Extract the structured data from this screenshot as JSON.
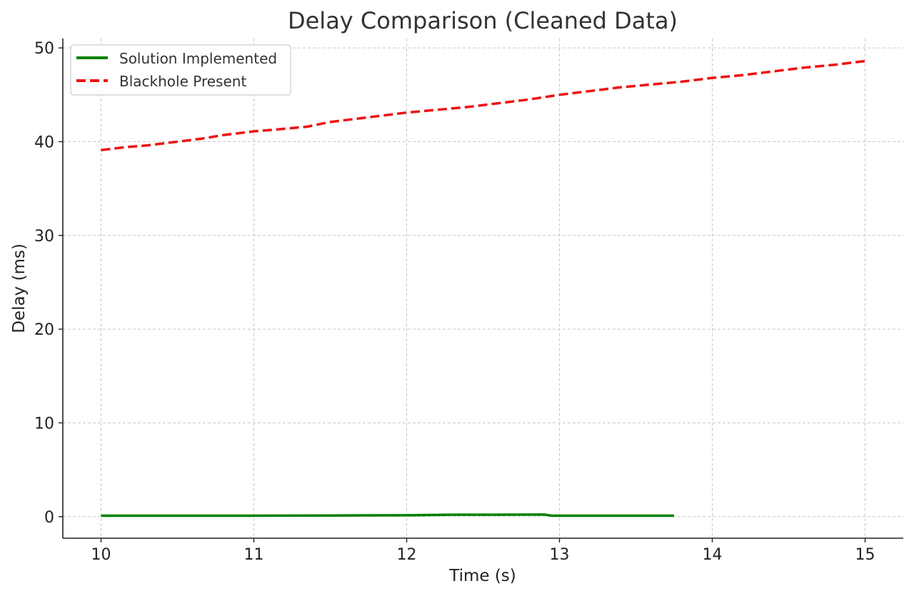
{
  "chart_data": {
    "type": "line",
    "title": "Delay Comparison (Cleaned Data)",
    "xlabel": "Time (s)",
    "ylabel": "Delay (ms)",
    "xlim": [
      9.75,
      15.25
    ],
    "ylim": [
      -2.3,
      51.0
    ],
    "x_ticks": [
      10,
      11,
      12,
      13,
      14,
      15
    ],
    "y_ticks": [
      0,
      10,
      20,
      30,
      40,
      50
    ],
    "grid": true,
    "legend_position": "top-left",
    "series": [
      {
        "name": "Solution Implemented",
        "color": "#008000",
        "line_style": "solid",
        "points": [
          [
            10.0,
            0.1
          ],
          [
            10.5,
            0.1
          ],
          [
            11.0,
            0.1
          ],
          [
            11.5,
            0.12
          ],
          [
            12.0,
            0.15
          ],
          [
            12.3,
            0.2
          ],
          [
            12.6,
            0.2
          ],
          [
            12.9,
            0.22
          ],
          [
            12.95,
            0.1
          ],
          [
            13.4,
            0.1
          ],
          [
            13.75,
            0.1
          ]
        ]
      },
      {
        "name": "Blackhole Present",
        "color": "#ee1111",
        "line_style": "dashed",
        "points": [
          [
            10.0,
            39.1
          ],
          [
            10.15,
            39.4
          ],
          [
            10.3,
            39.6
          ],
          [
            10.5,
            40.0
          ],
          [
            10.65,
            40.3
          ],
          [
            10.8,
            40.7
          ],
          [
            11.0,
            41.1
          ],
          [
            11.15,
            41.3
          ],
          [
            11.35,
            41.6
          ],
          [
            11.5,
            42.1
          ],
          [
            11.7,
            42.5
          ],
          [
            11.85,
            42.8
          ],
          [
            12.0,
            43.1
          ],
          [
            12.2,
            43.4
          ],
          [
            12.4,
            43.7
          ],
          [
            12.6,
            44.1
          ],
          [
            12.8,
            44.5
          ],
          [
            13.0,
            45.0
          ],
          [
            13.2,
            45.4
          ],
          [
            13.4,
            45.8
          ],
          [
            13.6,
            46.1
          ],
          [
            13.8,
            46.4
          ],
          [
            14.0,
            46.8
          ],
          [
            14.2,
            47.1
          ],
          [
            14.4,
            47.5
          ],
          [
            14.6,
            47.9
          ],
          [
            14.8,
            48.2
          ],
          [
            15.0,
            48.6
          ]
        ]
      }
    ]
  }
}
